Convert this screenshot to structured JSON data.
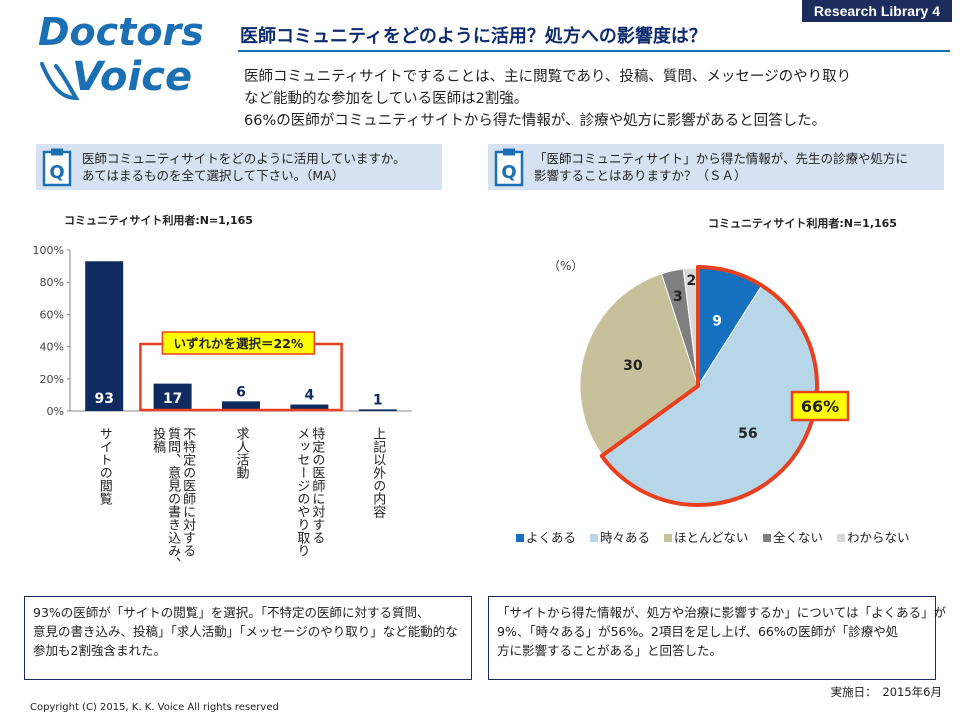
{
  "logo": {
    "line1": "Doctors",
    "line2": "Voice"
  },
  "badge": "Research Library 4",
  "title": "医師コミュニティをどのように活用？処方への影響度は？",
  "lead": [
    "医師コミュニティサイトですることは、主に閲覧であり、投稿、質問、メッセージのやり取り",
    "など能動的な参加をしている医師は2割強。",
    "66%の医師がコミュニティサイトから得た情報が、診療や処方に影響があると回答した。"
  ],
  "left_question": [
    "医師コミュニティサイトをどのように活用していますか。",
    "あてはまるものを全て選択して下さい。（MA）"
  ],
  "right_question": [
    "「医師コミュニティサイト」から得た情報が、先生の診療や処方に",
    "影響することはありますか？（ＳＡ）"
  ],
  "left_note": [
    "93%の医師が「サイトの閲覧」を選択。「不特定の医師に対する質問、",
    "意見の書き込み、投稿」「求人活動」「メッセージのやり取り」など能動的な",
    "参加も2割強含まれた。"
  ],
  "right_note": [
    "「サイトから得た情報が、処方や治療に影響するか」については「よくある」が",
    "9%、「時々ある」が56%。2項目を足し上げ、66%の医師が「診療や処",
    "方に影響することがある」と回答した。"
  ],
  "copyright": "Copyright (C) 2015, K. K. Voice  All rights reserved",
  "date": "実施日：　2015年6月",
  "chart_data": [
    {
      "type": "bar",
      "sample_label": "コミュニティサイト利用者:N=1,165",
      "categories": [
        "サイトの閲覧",
        "不特定の医師に対する質問、意見の書き込み、投稿",
        "求人活動",
        "特定の医師に対するメッセージのやり取り",
        "上記以外の内容"
      ],
      "category_columns": [
        [
          "サイトの閲覧"
        ],
        [
          "不特定の医師に対する",
          "質問、意見の書き込み、",
          "投稿"
        ],
        [
          "求人活動"
        ],
        [
          "特定の医師に対する",
          "メッセージのやり取り"
        ],
        [
          "上記以外の内容"
        ]
      ],
      "values": [
        93,
        17,
        6,
        4,
        1
      ],
      "value_labels": [
        "93",
        "17",
        "6",
        "4",
        "1"
      ],
      "y_ticks": [
        "100%",
        "80%",
        "60%",
        "40%",
        "20%",
        "0%"
      ],
      "ylim": [
        0,
        100
      ],
      "bar_color": "#0f2a5e",
      "highlight_label": "いずれかを選択＝22%",
      "highlight_categories": [
        1,
        2,
        3
      ],
      "highlight_color": "#e8401f",
      "highlight_fill": "#ffff00"
    },
    {
      "type": "pie",
      "sample_label": "コミュニティサイト利用者:N=1,165",
      "unit_label": "（%）",
      "slices": [
        {
          "label": "よくある",
          "value": 9,
          "color": "#1570c0"
        },
        {
          "label": "時々ある",
          "value": 56,
          "color": "#b7d7e8"
        },
        {
          "label": "ほとんどない",
          "value": 30,
          "color": "#c6c09b"
        },
        {
          "label": "全くない",
          "value": 3,
          "color": "#7f7f7f"
        },
        {
          "label": "わからない",
          "value": 2,
          "color": "#d9d9d9"
        }
      ],
      "highlight_label": "66%",
      "highlight_slices": [
        0,
        1
      ],
      "highlight_color": "#e8401f",
      "highlight_fill": "#ffff00",
      "legend_position": "bottom"
    }
  ]
}
